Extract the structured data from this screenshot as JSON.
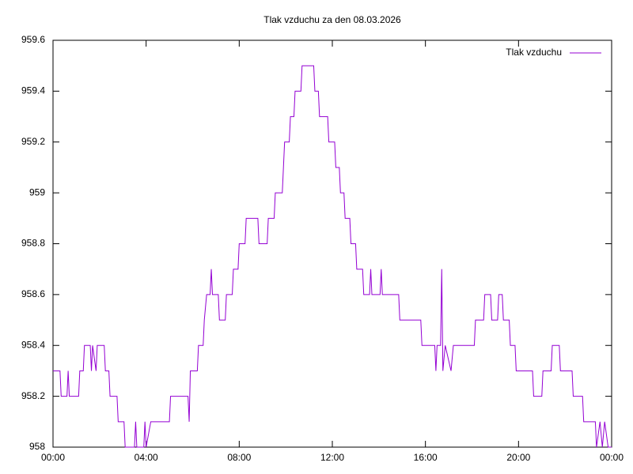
{
  "chart_data": {
    "type": "line",
    "title": "Tlak vzduchu za den 08.03.2026",
    "series": [
      {
        "name": "Tlak vzduchu",
        "color": "#9400d3",
        "x": [
          0,
          0.3,
          0.35,
          0.6,
          0.65,
          0.7,
          1.1,
          1.15,
          1.3,
          1.35,
          1.6,
          1.65,
          1.7,
          1.85,
          1.9,
          2.2,
          2.25,
          2.4,
          2.45,
          2.75,
          2.8,
          3.05,
          3.1,
          3.5,
          3.55,
          3.6,
          3.9,
          3.95,
          4.0,
          4.2,
          5.0,
          5.05,
          5.8,
          5.85,
          5.9,
          6.2,
          6.25,
          6.45,
          6.5,
          6.6,
          6.75,
          6.8,
          6.85,
          7.1,
          7.15,
          7.4,
          7.45,
          7.7,
          7.75,
          7.95,
          8.0,
          8.25,
          8.3,
          8.8,
          8.85,
          9.2,
          9.25,
          9.5,
          9.55,
          9.85,
          9.9,
          9.95,
          10.15,
          10.2,
          10.35,
          10.4,
          10.65,
          10.7,
          11.2,
          11.25,
          11.4,
          11.45,
          11.8,
          11.85,
          12.1,
          12.15,
          12.3,
          12.35,
          12.5,
          12.55,
          12.75,
          12.8,
          13.0,
          13.05,
          13.3,
          13.35,
          13.6,
          13.65,
          13.7,
          14.05,
          14.1,
          14.15,
          14.85,
          14.9,
          15.8,
          15.85,
          16.4,
          16.45,
          16.5,
          16.65,
          16.7,
          16.75,
          16.85,
          17.1,
          17.2,
          17.5,
          18.1,
          18.15,
          18.5,
          18.55,
          18.8,
          18.85,
          19.1,
          19.15,
          19.3,
          19.35,
          19.6,
          19.65,
          19.85,
          19.9,
          20.6,
          20.65,
          21.0,
          21.05,
          21.4,
          21.45,
          21.75,
          21.8,
          22.3,
          22.35,
          22.75,
          22.8,
          23.3,
          23.35,
          23.5,
          23.6,
          23.7,
          23.85,
          24.0
        ],
        "values": [
          958.3,
          958.3,
          958.2,
          958.2,
          958.3,
          958.2,
          958.2,
          958.3,
          958.3,
          958.4,
          958.4,
          958.3,
          958.4,
          958.3,
          958.4,
          958.4,
          958.3,
          958.3,
          958.2,
          958.2,
          958.1,
          958.1,
          958.0,
          958.0,
          958.1,
          958.0,
          958.0,
          958.1,
          958.0,
          958.1,
          958.1,
          958.2,
          958.2,
          958.1,
          958.3,
          958.3,
          958.4,
          958.4,
          958.5,
          958.6,
          958.6,
          958.7,
          958.6,
          958.6,
          958.5,
          958.5,
          958.6,
          958.6,
          958.7,
          958.7,
          958.8,
          958.8,
          958.9,
          958.9,
          958.8,
          958.8,
          958.9,
          958.9,
          959.0,
          959.0,
          959.1,
          959.2,
          959.2,
          959.3,
          959.3,
          959.4,
          959.4,
          959.5,
          959.5,
          959.4,
          959.4,
          959.3,
          959.3,
          959.2,
          959.2,
          959.1,
          959.1,
          959.0,
          959.0,
          958.9,
          958.9,
          958.8,
          958.8,
          958.7,
          958.7,
          958.6,
          958.6,
          958.7,
          958.6,
          958.6,
          958.7,
          958.6,
          958.6,
          958.5,
          958.5,
          958.4,
          958.4,
          958.3,
          958.4,
          958.4,
          958.7,
          958.3,
          958.4,
          958.3,
          958.4,
          958.4,
          958.4,
          958.5,
          958.5,
          958.6,
          958.6,
          958.5,
          958.5,
          958.6,
          958.6,
          958.5,
          958.5,
          958.4,
          958.4,
          958.3,
          958.3,
          958.2,
          958.2,
          958.3,
          958.3,
          958.4,
          958.4,
          958.3,
          958.3,
          958.2,
          958.2,
          958.1,
          958.1,
          958.0,
          958.1,
          958.0,
          958.1,
          958.0,
          958.0
        ]
      }
    ],
    "xlim": [
      0,
      24
    ],
    "xticks": [
      {
        "value": 0,
        "label": "00:00"
      },
      {
        "value": 4,
        "label": "04:00"
      },
      {
        "value": 8,
        "label": "08:00"
      },
      {
        "value": 12,
        "label": "12:00"
      },
      {
        "value": 16,
        "label": "16:00"
      },
      {
        "value": 20,
        "label": "20:00"
      },
      {
        "value": 24,
        "label": "00:00"
      }
    ],
    "ylim": [
      958,
      959.6
    ],
    "yticks": [
      958,
      958.2,
      958.4,
      958.6,
      958.8,
      959,
      959.2,
      959.4,
      959.6
    ],
    "legend": "top-right",
    "grid": false
  }
}
